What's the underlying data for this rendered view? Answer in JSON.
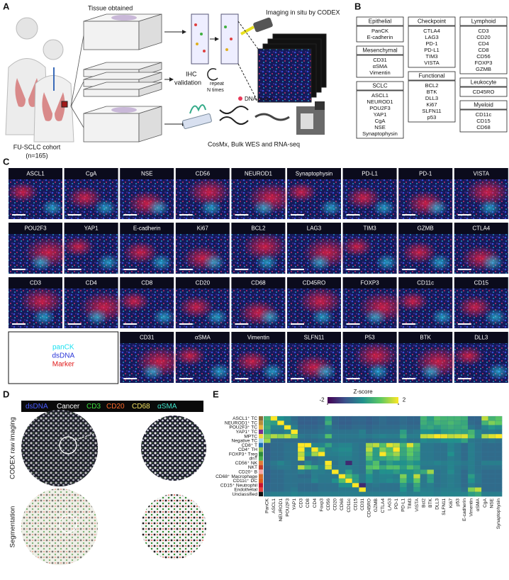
{
  "panel_a": {
    "label": "A",
    "tissue": "Tissue obtained",
    "codex": "Imaging in situ by CODEX",
    "ihc": [
      "IHC",
      "validation"
    ],
    "repeat": [
      "repeat",
      "N times"
    ],
    "probe": "DNA probe",
    "cohort": [
      "FU-SCLC cohort",
      "(n=165)"
    ],
    "seq": "CosMx, Bulk WES and RNA-seq"
  },
  "panel_b": {
    "label": "B",
    "groups": [
      {
        "title": "Epithelial",
        "markers": [
          "PanCK",
          "E-cadherin"
        ]
      },
      {
        "title": "Mesenchymal",
        "markers": [
          "CD31",
          "αSMA",
          "Vimentin"
        ]
      },
      {
        "title": "SCLC",
        "markers": [
          "ASCL1",
          "NEUROD1",
          "POU2F3",
          "YAP1",
          "CgA",
          "NSE",
          "Synaptophysin"
        ]
      },
      {
        "title": "Checkpoint",
        "markers": [
          "CTLA4",
          "LAG3",
          "PD-1",
          "PD-L1",
          "TIM3",
          "VISTA"
        ]
      },
      {
        "title": "Functional",
        "markers": [
          "BCL2",
          "BTK",
          "DLL3",
          "Ki67",
          "SLFN11",
          "p53"
        ]
      },
      {
        "title": "Lymphoid",
        "markers": [
          "CD3",
          "CD20",
          "CD4",
          "CD8",
          "CD56",
          "FOXP3",
          "GZMB"
        ]
      },
      {
        "title": "Leukocyte",
        "markers": [
          "CD45RO"
        ]
      },
      {
        "title": "Myeloid",
        "markers": [
          "CD11c",
          "CD15",
          "CD68"
        ]
      }
    ]
  },
  "panel_c": {
    "label": "C",
    "rows": [
      [
        "ASCL1",
        "CgA",
        "NSE",
        "CD56",
        "NEUROD1",
        "Synaptophysin",
        "PD-L1",
        "PD-1",
        "VISTA"
      ],
      [
        "POU2F3",
        "YAP1",
        "E-cadherin",
        "Ki67",
        "BCL2",
        "LAG3",
        "TIM3",
        "GZMB",
        "CTLA4"
      ],
      [
        "CD3",
        "CD4",
        "CD8",
        "CD20",
        "CD68",
        "CD45RO",
        "FOXP3",
        "CD11c",
        "CD15"
      ],
      [
        "CD31",
        "αSMA",
        "Vimentin",
        "SLFN11",
        "P53",
        "BTK",
        "DLL3"
      ]
    ],
    "legend": [
      "panCK",
      "dsDNA",
      "Marker"
    ],
    "legend_colors": [
      "#19e0f0",
      "#2a35d8",
      "#e01818"
    ]
  },
  "panel_d": {
    "label": "D",
    "legend": [
      "dsDNA",
      "Cancer",
      "CD3",
      "CD20",
      "CD68",
      "αSMA"
    ],
    "legend_colors": [
      "#4a5cff",
      "#ffffff",
      "#3ee03e",
      "#ff6a2a",
      "#f0e060",
      "#3ee0c8"
    ],
    "rows": [
      "CODEX raw imaging",
      "Segmentation"
    ]
  },
  "panel_e": {
    "label": "E",
    "type": "heatmap",
    "colorbar_title": "Z-score",
    "zlim": [
      -2,
      2
    ],
    "zticks": [
      -2,
      2
    ],
    "rows": [
      "ASCL1⁺ TC",
      "NEUROD1⁺ TC",
      "POU2F3⁺ TC",
      "YAP1⁺ TC",
      "MPTC",
      "Negative TC",
      "CD8⁺ T",
      "CD4⁺ TH",
      "FOXP3⁺ Treg",
      "dnT",
      "CD56⁺ NK",
      "NKT",
      "CD20⁺ B",
      "CD68⁺ Macrophage",
      "CD11c⁺ DC",
      "CD15⁺ Neutrophil",
      "Endothelial",
      "Unclassified"
    ],
    "row_colors": [
      "#8b6d3a",
      "#b58c3c",
      "#e8b23a",
      "#7b2d8e",
      "#f2d53c",
      "#9fd3e8",
      "#1f6fb4",
      "#8bc34a",
      "#2e8b3a",
      "#4caf50",
      "#e07b39",
      "#c43c2c",
      "#f4a6a6",
      "#d46a2a",
      "#e05a1a",
      "#c8102e",
      "#e83e3e",
      "#111111"
    ],
    "columns": [
      "PanCK",
      "ASCL1",
      "NEUROD1",
      "POU2F3",
      "YAP1",
      "CD3",
      "CD8",
      "CD4",
      "Foxp3",
      "CD56",
      "CD20",
      "CD68",
      "CD11c",
      "CD15",
      "CD31",
      "CD45RO",
      "GZMB",
      "CTLA4",
      "LAG3",
      "PD-1",
      "PD-L1",
      "TIM3",
      "VISTA",
      "Bcl2",
      "BTK",
      "DLL3",
      "SLFN11",
      "Ki67",
      "p53",
      "E-cadherin",
      "Vimentin",
      "αSMA",
      "CgA",
      "NSE",
      "Synaptophysin"
    ],
    "values": [
      [
        0.6,
        2,
        0,
        -0.2,
        -0.6,
        -0.8,
        -0.8,
        -0.8,
        -0.7,
        0.2,
        -0.7,
        -0.8,
        -0.8,
        -0.7,
        -0.7,
        -0.8,
        -0.7,
        -0.6,
        -0.7,
        -0.7,
        -0.6,
        -0.7,
        -0.7,
        0.6,
        0.2,
        0.8,
        0.6,
        0.6,
        0.6,
        0.5,
        -0.7,
        -0.7,
        1.6,
        0.6,
        0.9
      ],
      [
        0.4,
        0.2,
        2,
        -0.3,
        -0.5,
        -0.8,
        -0.8,
        -0.8,
        -0.7,
        0.5,
        -0.7,
        -0.8,
        -0.8,
        -0.7,
        -0.7,
        -0.8,
        -0.7,
        -0.6,
        -0.7,
        -0.7,
        -0.6,
        -0.7,
        -0.7,
        0.5,
        0.3,
        0.6,
        0.5,
        0.7,
        0.5,
        0.4,
        -0.6,
        -0.7,
        0.6,
        1.2,
        1
      ],
      [
        0.5,
        -0.2,
        -0.2,
        2,
        -0.3,
        -0.7,
        -0.7,
        -0.7,
        -0.6,
        -0.3,
        -0.6,
        -0.7,
        -0.7,
        -0.6,
        -0.6,
        -0.7,
        -0.6,
        -0.6,
        -0.6,
        -0.6,
        -0.5,
        -0.6,
        -0.6,
        0.3,
        0.4,
        0.2,
        0.4,
        0.5,
        0.4,
        0.5,
        -0.4,
        -0.6,
        -0.2,
        0.1,
        -0.1
      ],
      [
        0.3,
        -0.4,
        -0.4,
        -0.2,
        2,
        -0.6,
        -0.6,
        -0.6,
        -0.5,
        -0.4,
        -0.5,
        -0.5,
        -0.5,
        -0.5,
        -0.3,
        -0.6,
        -0.5,
        -0.5,
        -0.5,
        -0.5,
        0.2,
        -0.5,
        -0.4,
        0,
        0,
        -0.2,
        0.2,
        0.3,
        0.4,
        0.3,
        0.6,
        -0.2,
        -0.4,
        -0.3,
        -0.4
      ],
      [
        1.2,
        1.5,
        1.3,
        1.6,
        1.2,
        -0.4,
        -0.5,
        -0.4,
        -0.3,
        0.8,
        -0.4,
        -0.4,
        -0.4,
        -0.4,
        -0.3,
        -0.4,
        -0.3,
        -0.2,
        -0.3,
        -0.3,
        0.4,
        -0.3,
        -0.3,
        1.6,
        1.7,
        2,
        1.9,
        1.6,
        1.7,
        1.8,
        0.8,
        -0.2,
        1.5,
        1.8,
        2
      ],
      [
        1.4,
        -0.6,
        -0.6,
        -0.6,
        -0.6,
        -0.6,
        -0.6,
        -0.6,
        -0.5,
        -0.5,
        -0.5,
        -0.5,
        -0.5,
        -0.5,
        -0.5,
        -0.6,
        -0.5,
        -0.5,
        -0.5,
        -0.5,
        -0.2,
        -0.5,
        -0.5,
        -0.1,
        -0.2,
        -0.2,
        0,
        0,
        0,
        0.3,
        -0.4,
        -0.5,
        -0.5,
        -0.4,
        -0.5
      ],
      [
        -0.8,
        -0.6,
        -0.6,
        -0.5,
        -0.5,
        2,
        2,
        -0.2,
        -0.2,
        0.3,
        -0.3,
        -0.2,
        -0.2,
        -0.4,
        -0.5,
        1.4,
        1.6,
        0.8,
        1.8,
        1.6,
        0.6,
        1.8,
        0.8,
        -0.4,
        -0.4,
        -0.5,
        -0.5,
        -0.2,
        -0.4,
        -0.6,
        -0.3,
        -0.5,
        -0.6,
        -0.6,
        -0.6
      ],
      [
        -0.8,
        -0.6,
        -0.6,
        -0.5,
        -0.5,
        2,
        -0.2,
        2,
        0.6,
        -0.3,
        -0.2,
        -0.1,
        -0.1,
        -0.4,
        -0.5,
        1.6,
        0.2,
        1.2,
        0.8,
        2,
        0.4,
        1,
        0.6,
        -0.4,
        -0.4,
        -0.5,
        -0.5,
        -0.2,
        -0.4,
        -0.6,
        -0.3,
        -0.5,
        -0.6,
        -0.6,
        -0.6
      ],
      [
        -0.8,
        -0.6,
        -0.6,
        -0.5,
        -0.5,
        1.6,
        0,
        1.4,
        2,
        -0.3,
        -0.3,
        -0.2,
        -0.2,
        -0.4,
        -0.5,
        1.2,
        0.2,
        2,
        1,
        1.4,
        0.4,
        1,
        0.4,
        -0.4,
        -0.4,
        -0.5,
        -0.5,
        0,
        -0.4,
        -0.6,
        -0.3,
        -0.5,
        -0.6,
        -0.6,
        -0.6
      ],
      [
        -0.8,
        -0.6,
        -0.6,
        -0.5,
        -0.5,
        1.8,
        -0.6,
        -0.6,
        -0.4,
        -0.4,
        -0.4,
        -0.3,
        -0.3,
        -0.4,
        -0.5,
        0.8,
        0.2,
        0.4,
        0.6,
        0.8,
        0.2,
        0.6,
        0.4,
        -0.4,
        -0.4,
        -0.5,
        -0.5,
        -0.3,
        -0.4,
        -0.6,
        -0.3,
        -0.5,
        -0.6,
        -0.6,
        -0.6
      ],
      [
        -0.6,
        -0.4,
        -0.2,
        -0.4,
        -0.5,
        -0.6,
        -0.2,
        -0.5,
        -0.4,
        2,
        -0.5,
        -0.3,
        -1.5,
        -0.4,
        -0.5,
        0.2,
        0.8,
        -0.2,
        0.2,
        0,
        0,
        0.2,
        0,
        -0.3,
        -0.3,
        -0.2,
        -0.3,
        -0.2,
        -0.3,
        -0.4,
        -0.3,
        -0.5,
        -0.3,
        -0.3,
        -0.3
      ],
      [
        -0.7,
        -0.5,
        -0.4,
        -0.4,
        -0.5,
        1.6,
        0.8,
        0.4,
        -0.2,
        1.8,
        -0.4,
        -0.3,
        -0.3,
        -0.4,
        -0.5,
        0.8,
        1,
        0.4,
        0.8,
        0.8,
        0.2,
        0.8,
        0.4,
        -0.4,
        -0.4,
        -0.4,
        -0.4,
        -0.2,
        -0.4,
        -0.5,
        -0.3,
        -0.5,
        -0.5,
        -0.5,
        -0.5
      ],
      [
        -0.8,
        -0.6,
        -0.6,
        -0.5,
        -0.5,
        -0.3,
        -0.5,
        -0.3,
        -0.3,
        -0.4,
        2,
        -0.3,
        0.2,
        -0.4,
        -0.5,
        0.4,
        -0.3,
        0,
        0,
        0.2,
        0,
        0,
        0.2,
        0.4,
        1.4,
        -0.5,
        -0.4,
        -0.1,
        -0.4,
        -0.6,
        -0.3,
        -0.5,
        -0.6,
        -0.6,
        -0.6
      ],
      [
        -0.8,
        -0.6,
        -0.6,
        -0.5,
        -0.5,
        -0.6,
        -0.6,
        -0.3,
        -0.4,
        -0.4,
        -0.4,
        2,
        0.8,
        0.2,
        -0.4,
        0,
        -0.3,
        -0.2,
        -0.2,
        -0.3,
        1.2,
        0,
        1.6,
        -0.4,
        0.2,
        -0.5,
        -0.4,
        -0.3,
        -0.4,
        -0.6,
        0.2,
        -0.4,
        -0.6,
        -0.6,
        -0.6
      ],
      [
        -0.8,
        -0.6,
        -0.6,
        -0.5,
        -0.5,
        -0.5,
        -0.5,
        -0.2,
        -0.4,
        -0.4,
        0,
        0.8,
        2,
        0.2,
        -0.4,
        0,
        -0.3,
        -0.2,
        -0.1,
        -0.2,
        0.8,
        0,
        1,
        -0.4,
        0.2,
        -0.5,
        -0.4,
        -0.3,
        -0.4,
        -0.6,
        0,
        -0.4,
        -0.6,
        -0.6,
        -0.6
      ],
      [
        -0.7,
        -0.6,
        -0.6,
        -0.5,
        -0.5,
        -0.6,
        -0.6,
        -0.6,
        -0.5,
        -0.5,
        -0.5,
        0,
        0,
        2,
        -1.5,
        -0.5,
        -0.4,
        -0.5,
        -0.5,
        -0.5,
        0.2,
        -0.4,
        0.4,
        -0.4,
        -0.3,
        -0.5,
        -0.4,
        -0.3,
        -0.4,
        -0.6,
        -0.3,
        -0.5,
        -0.6,
        -0.6,
        -0.6
      ],
      [
        -0.7,
        -0.6,
        -0.6,
        -0.5,
        -0.4,
        -0.6,
        -0.6,
        -0.6,
        -0.5,
        -0.5,
        -0.5,
        -0.4,
        -0.4,
        -0.4,
        2,
        -0.5,
        -0.5,
        -0.5,
        -0.5,
        -0.5,
        0,
        -0.4,
        0.2,
        -0.3,
        -0.3,
        -0.4,
        -0.3,
        -0.3,
        -0.3,
        -0.5,
        1.2,
        1.6,
        -0.6,
        -0.6,
        -0.6
      ],
      [
        -0.4,
        -0.3,
        -0.3,
        -0.3,
        -0.2,
        -0.3,
        -0.3,
        -0.3,
        -0.3,
        -0.3,
        -0.3,
        -0.3,
        -0.3,
        -0.3,
        -0.3,
        -0.3,
        -0.3,
        -0.3,
        -0.3,
        -0.3,
        -0.2,
        -0.3,
        -0.3,
        -0.2,
        -0.2,
        -0.3,
        -0.2,
        -0.2,
        -0.2,
        -0.2,
        0.2,
        0.4,
        -0.3,
        -0.3,
        -0.3
      ]
    ]
  }
}
